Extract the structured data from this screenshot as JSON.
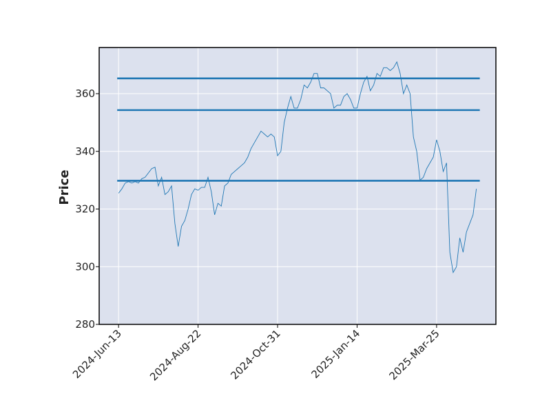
{
  "chart_data": {
    "type": "line",
    "y_label": "Price",
    "categories": [
      "2024-Jun-13",
      null,
      null,
      null,
      null,
      null,
      null,
      null,
      null,
      null,
      null,
      null,
      null,
      null,
      null,
      null,
      null,
      null,
      null,
      null,
      null,
      null,
      null,
      null,
      "2024-Aug-22",
      null,
      null,
      null,
      null,
      null,
      null,
      null,
      null,
      null,
      null,
      null,
      null,
      null,
      null,
      null,
      null,
      null,
      null,
      null,
      null,
      null,
      null,
      null,
      "2024-Oct-31",
      null,
      null,
      null,
      null,
      null,
      null,
      null,
      null,
      null,
      null,
      null,
      null,
      null,
      null,
      null,
      null,
      null,
      null,
      null,
      null,
      null,
      null,
      null,
      "2025-Jan-14",
      null,
      null,
      null,
      null,
      null,
      null,
      null,
      null,
      null,
      null,
      null,
      null,
      null,
      null,
      null,
      null,
      null,
      null,
      null,
      null,
      null,
      null,
      null,
      "2025-Mar-25",
      null,
      null,
      null,
      null,
      null,
      null,
      null,
      null,
      null,
      null,
      null,
      null
    ],
    "values": [
      325.5,
      327,
      329,
      329.5,
      329,
      329.5,
      329,
      330.5,
      331,
      332.5,
      334,
      334.5,
      328,
      331,
      325,
      326,
      328,
      315,
      307,
      314,
      316,
      320,
      325,
      327,
      326.5,
      327.5,
      327.5,
      331,
      326,
      318,
      322,
      321,
      328,
      329,
      332,
      333,
      334,
      335,
      336,
      338,
      341,
      343,
      345,
      347,
      346,
      345,
      346,
      345,
      338.5,
      340,
      350,
      355,
      359,
      355,
      355,
      358,
      363,
      362,
      364,
      367,
      367,
      362,
      362,
      361,
      360,
      355,
      356,
      356,
      359,
      360,
      358,
      355,
      355,
      360,
      364,
      366,
      361,
      363,
      367,
      366,
      369,
      369,
      368,
      369,
      371,
      367,
      360,
      363,
      360,
      345,
      340,
      330,
      331,
      334,
      336,
      338,
      344,
      340,
      333,
      336,
      305,
      298,
      300,
      310,
      305,
      312,
      315,
      318,
      327
    ],
    "color": "#1f77b4",
    "hlines": [
      365.3,
      354.3,
      329.8
    ],
    "ylim": [
      280,
      376
    ],
    "yticks": [
      280,
      300,
      320,
      340,
      360
    ],
    "grid": true
  }
}
